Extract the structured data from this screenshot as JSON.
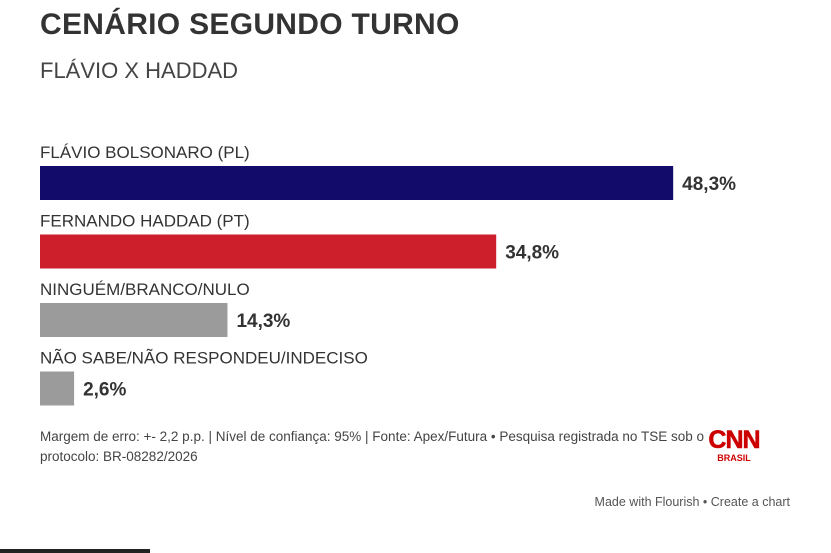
{
  "header": {
    "title": "CENÁRIO SEGUNDO TURNO",
    "subtitle": "FLÁVIO X HADDAD"
  },
  "chart_data": {
    "type": "bar",
    "orientation": "horizontal",
    "categories": [
      "FLÁVIO BOLSONARO (PL)",
      "FERNANDO HADDAD (PT)",
      "NINGUÉM/BRANCO/NULO",
      "NÃO SABE/NÃO RESPONDEU/INDECISO"
    ],
    "values": [
      48.3,
      34.8,
      14.3,
      2.6
    ],
    "value_labels": [
      "48,3%",
      "34,8%",
      "14,3%",
      "2,6%"
    ],
    "colors": [
      "#120b69",
      "#cc1f2b",
      "#9b9b9b",
      "#9b9b9b"
    ],
    "xlim": [
      0,
      55
    ],
    "grid": false,
    "legend": "none"
  },
  "footer": {
    "note": "Margem de erro: +- 2,2 p.p. | Nível de confiança: 95% | Fonte: Apex/Futura • Pesquisa registrada no TSE sob o protocolo: BR-08282/2026",
    "logo_text": "CNN",
    "logo_sub": "BRASIL",
    "made_with": "Made with Flourish",
    "separator": " • ",
    "create": "Create a chart"
  }
}
